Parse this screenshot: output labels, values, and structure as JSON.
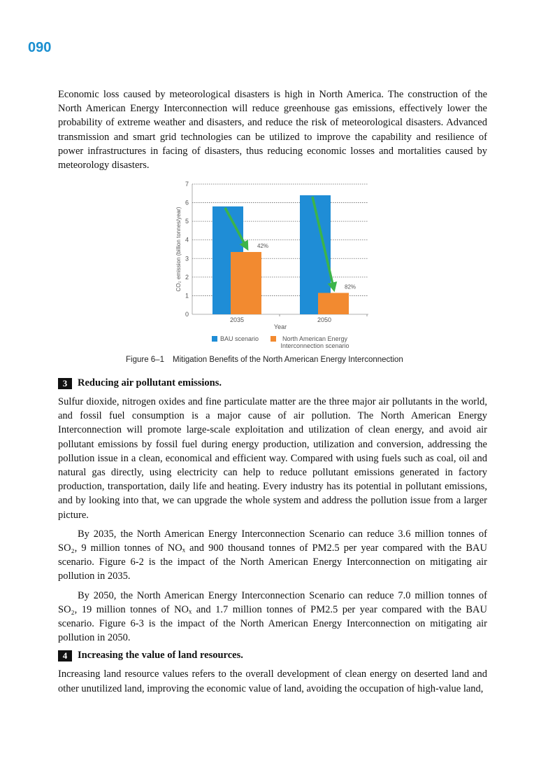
{
  "page_number": "090",
  "intro": "Economic loss caused by meteorological disasters is high in North America. The construction of the North American Energy Interconnection will reduce greenhouse gas emissions, effectively lower the probability of extreme weather and disasters, and reduce the risk of meteorological disasters. Advanced transmission and smart grid technologies can be utilized to improve the capability and resilience of power infrastructures in facing of disasters, thus reducing economic losses and mortalities caused by meteorology disasters.",
  "chart_data": {
    "type": "bar",
    "ylabel": "CO₂ emission (billion tonnes/year)",
    "xlabel": "Year",
    "categories": [
      "2035",
      "2050"
    ],
    "series": [
      {
        "name": "BAU scenario",
        "color": "#1f8dd6",
        "values": [
          5.8,
          6.4
        ]
      },
      {
        "name": "North American Energy Interconnection scenario",
        "color": "#f28a30",
        "values": [
          3.35,
          1.15
        ]
      }
    ],
    "annotations": [
      "42%",
      "82%"
    ],
    "ylim": [
      0,
      7
    ],
    "yticks": [
      0,
      1,
      2,
      3,
      4,
      5,
      6,
      7
    ],
    "grid": true
  },
  "figure": {
    "label": "Figure 6‒1",
    "caption": "Mitigation Benefits of the North American Energy Interconnection"
  },
  "sections": [
    {
      "number": "3",
      "title": "Reducing air pollutant emissions.",
      "paragraphs": [
        "Sulfur dioxide, nitrogen oxides and fine particulate matter are the three major air pollutants in the world, and fossil fuel consumption is a major cause of air pollution. The North American Energy Interconnection will promote large-scale exploitation and utilization of clean energy, and avoid air pollutant emissions by fossil fuel during energy production, utilization and conversion, addressing the pollution issue in a clean, economical and efficient way. Compared with using fuels such as coal, oil and natural gas directly, using electricity can help to reduce pollutant emissions generated in factory production, transportation, daily life and heating. Every industry has its potential in pollutant emissions, and by looking into that, we can upgrade the whole system and address the pollution issue from a larger picture.",
        "By 2035, the North American Energy Interconnection Scenario can reduce 3.6 million tonnes of SO₂, 9 million tonnes of NOₓ and 900 thousand tonnes of PM2.5 per year compared with the BAU scenario. Figure 6-2 is the impact of the North American Energy Interconnection on mitigating air pollution in 2035.",
        "By 2050, the North American Energy Interconnection Scenario can reduce 7.0 million tonnes of SO₂, 19 million tonnes of NOₓ and 1.7 million tonnes of PM2.5 per year compared with the BAU scenario. Figure 6-3 is the impact of the North American Energy Interconnection on mitigating air pollution in 2050."
      ]
    },
    {
      "number": "4",
      "title": "Increasing the value of land resources.",
      "paragraphs": [
        "Increasing land resource values refers to the overall development of clean energy on deserted land and other unutilized land, improving the economic value of land, avoiding the occupation of high-value land,"
      ]
    }
  ]
}
